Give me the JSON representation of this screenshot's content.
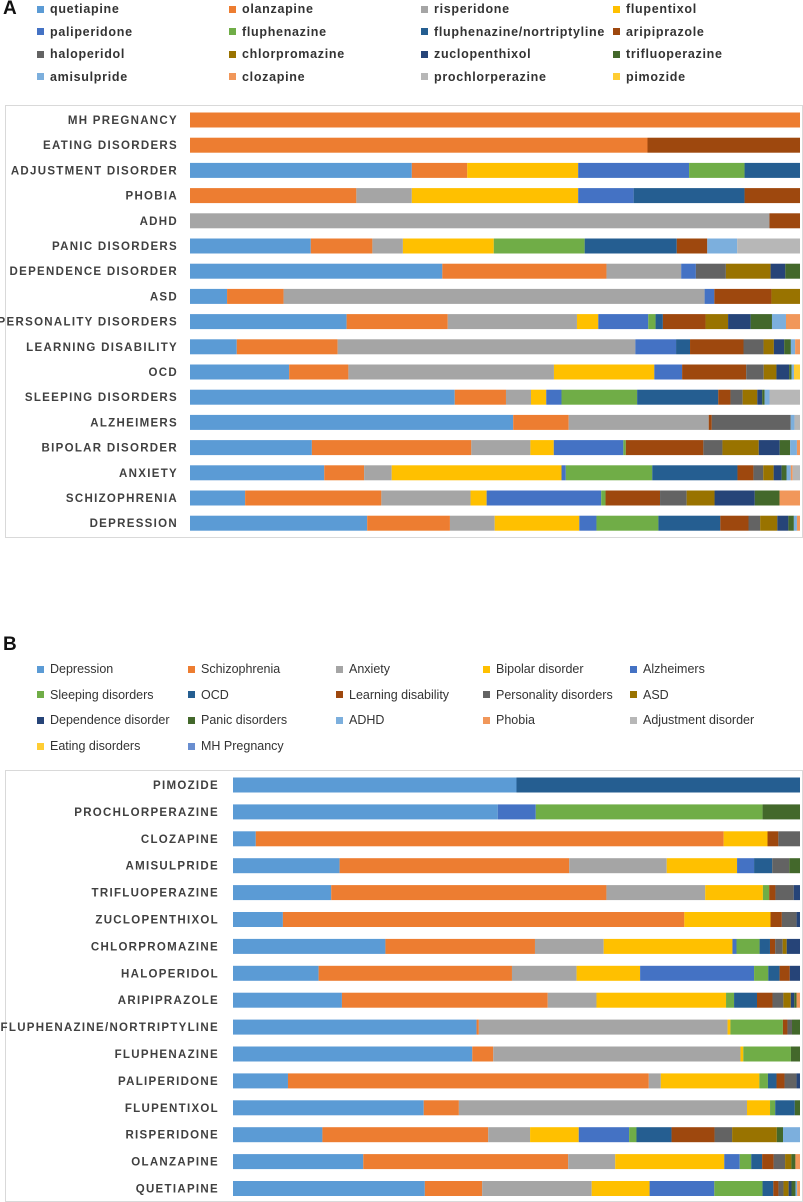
{
  "panels": [
    {
      "id": "A",
      "letter": "A",
      "chart_data": {
        "type": "bar",
        "orientation": "horizontal",
        "stacked": "percent",
        "title": "",
        "xlabel": "",
        "ylabel": "",
        "xlim": [
          0,
          100
        ],
        "grid": false,
        "legend_position": "top",
        "categories": [
          "MH PREGNANCY",
          "EATING DISORDERS",
          "ADJUSTMENT DISORDER",
          "PHOBIA",
          "ADHD",
          "PANIC DISORDERS",
          "DEPENDENCE DISORDER",
          "ASD",
          "PERSONALITY DISORDERS",
          "LEARNING DISABILITY",
          "OCD",
          "SLEEPING DISORDERS",
          "ALZHEIMERS",
          "BIPOLAR DISORDER",
          "ANXIETY",
          "SCHIZOPHRENIA",
          "DEPRESSION"
        ],
        "series": [
          {
            "name": "quetiapine",
            "color": "#5b9bd5",
            "values": [
              0,
              0,
              36.4,
              0,
              0,
              19.8,
              41.2,
              6.1,
              25.7,
              7.7,
              16.4,
              43.4,
              52.4,
              19.8,
              21.9,
              8.9,
              28.9
            ]
          },
          {
            "name": "olanzapine",
            "color": "#ed7d31",
            "values": [
              100,
              75,
              9.1,
              27.3,
              0,
              10.1,
              26.8,
              9.3,
              16.6,
              16.6,
              9.8,
              8.4,
              9.0,
              25.9,
              6.5,
              22.0,
              13.5
            ]
          },
          {
            "name": "risperidone",
            "color": "#a5a5a5",
            "values": [
              0,
              0,
              0,
              9.1,
              95,
              5.0,
              12.2,
              69.3,
              21.2,
              49.0,
              34.0,
              4.1,
              22.7,
              9.6,
              4.5,
              14.4,
              7.3
            ]
          },
          {
            "name": "flupentixol",
            "color": "#ffc000",
            "values": [
              0,
              0,
              18.2,
              27.3,
              0,
              14.9,
              0,
              0,
              3.5,
              0,
              16.6,
              2.5,
              0,
              3.8,
              27.7,
              2.6,
              13.8
            ]
          },
          {
            "name": "paliperidone",
            "color": "#4472c4",
            "values": [
              0,
              0,
              18.2,
              9.1,
              0,
              0,
              2.4,
              1.6,
              8.2,
              6.7,
              4.6,
              2.5,
              0,
              11.3,
              0.7,
              18.5,
              2.8
            ]
          },
          {
            "name": "fluphenazine",
            "color": "#70ad47",
            "values": [
              0,
              0,
              9.1,
              0,
              0,
              14.9,
              0,
              0,
              1.2,
              0,
              0,
              12.4,
              0,
              0.4,
              14.1,
              0.7,
              10.1
            ]
          },
          {
            "name": "fluphenazine/nortriptyline",
            "color": "#255e91",
            "values": [
              0,
              0,
              9.1,
              18.2,
              0,
              15.1,
              0,
              0,
              1.2,
              2.3,
              0,
              13.3,
              0,
              0,
              13.9,
              0,
              10.1
            ]
          },
          {
            "name": "aripiprazole",
            "color": "#9e480e",
            "values": [
              0,
              25,
              0,
              9.1,
              5,
              5.0,
              0,
              9.4,
              7.0,
              8.8,
              10.6,
              2.0,
              0.5,
              12.6,
              2.6,
              8.8,
              4.6
            ]
          },
          {
            "name": "haloperidol",
            "color": "#636363",
            "values": [
              0,
              0,
              0,
              0,
              0,
              0,
              4.9,
              0,
              0,
              3.3,
              2.9,
              2.0,
              12.8,
              3.1,
              1.6,
              4.3,
              1.9
            ]
          },
          {
            "name": "chlorpromazine",
            "color": "#997300",
            "values": [
              0,
              0,
              0,
              0,
              0,
              0,
              7.3,
              4.7,
              3.7,
              1.7,
              2.1,
              2.4,
              0,
              5.9,
              1.7,
              4.5,
              2.8
            ]
          },
          {
            "name": "zuclopenthixol",
            "color": "#264478",
            "values": [
              0,
              0,
              0,
              0,
              0,
              0,
              2.4,
              0,
              3.7,
              1.7,
              2.1,
              0.8,
              0,
              3.4,
              1.3,
              6.5,
              1.8
            ]
          },
          {
            "name": "trifluoperazine",
            "color": "#43682b",
            "values": [
              0,
              0,
              0,
              0,
              0,
              0,
              2.4,
              0,
              3.5,
              1.1,
              0.4,
              0.4,
              0,
              1.7,
              0.8,
              4.0,
              0.9
            ]
          },
          {
            "name": "amisulpride",
            "color": "#7cafdd",
            "values": [
              0,
              0,
              0,
              0,
              0,
              4.9,
              0,
              0,
              2.3,
              0.7,
              0.4,
              0.8,
              0.6,
              1.1,
              0.7,
              0,
              0.5
            ]
          },
          {
            "name": "clozapine",
            "color": "#f1975a",
            "values": [
              0,
              0,
              0,
              0,
              0,
              0,
              0,
              0,
              2.3,
              0.8,
              0,
              0,
              0,
              0.5,
              0.3,
              3.3,
              0.5
            ]
          },
          {
            "name": "prochlorperazine",
            "color": "#b7b7b7",
            "values": [
              0,
              0,
              0,
              0,
              0,
              10.3,
              0,
              0,
              0,
              0,
              0,
              5.0,
              0.9,
              0,
              1.2,
              0,
              0
            ]
          },
          {
            "name": "pimozide",
            "color": "#ffcd33",
            "values": [
              0,
              0,
              0,
              0,
              0,
              0,
              0,
              0,
              0,
              0,
              1.0,
              0,
              0,
              0,
              0,
              0,
              0
            ]
          }
        ]
      }
    },
    {
      "id": "B",
      "letter": "B",
      "chart_data": {
        "type": "bar",
        "orientation": "horizontal",
        "stacked": "percent",
        "title": "",
        "xlabel": "",
        "ylabel": "",
        "xlim": [
          0,
          100
        ],
        "grid": false,
        "legend_position": "top",
        "categories": [
          "PIMOZIDE",
          "PROCHLORPERAZINE",
          "CLOZAPINE",
          "AMISULPRIDE",
          "TRIFLUOPERAZINE",
          "ZUCLOPENTHIXOL",
          "CHLORPROMAZINE",
          "HALOPERIDOL",
          "ARIPIPRAZOLE",
          "FLUPHENAZINE/NORTRIPTYLINE",
          "FLUPHENAZINE",
          "PALIPERIDONE",
          "FLUPENTIXOL",
          "RISPERIDONE",
          "OLANZAPINE",
          "QUETIAPINE"
        ],
        "series": [
          {
            "name": "Depression",
            "color": "#5b9bd5",
            "values": [
              50,
              46.7,
              4,
              18.8,
              17.2,
              8.8,
              26.4,
              15.1,
              19.0,
              42.7,
              42.2,
              9.6,
              33.1,
              15.8,
              22.7,
              33.8
            ]
          },
          {
            "name": "Schizophrenia",
            "color": "#ed7d31",
            "values": [
              0,
              0,
              82.1,
              40.5,
              48.2,
              70.8,
              25.9,
              34.1,
              35.9,
              0.4,
              3.7,
              63.0,
              6.1,
              29.3,
              35.7,
              10.1
            ]
          },
          {
            "name": "Anxiety",
            "color": "#a5a5a5",
            "values": [
              0,
              0,
              0,
              17.2,
              17.3,
              0,
              11.9,
              11.4,
              8.5,
              43.6,
              43.6,
              2.1,
              50.0,
              7.4,
              8.2,
              19.3
            ]
          },
          {
            "name": "Bipolar disorder",
            "color": "#ffc000",
            "values": [
              0,
              0,
              7.7,
              12.4,
              10.1,
              15.2,
              22.3,
              11.2,
              22.6,
              0.5,
              0.5,
              17.2,
              4.0,
              8.6,
              19.0,
              10.2
            ]
          },
          {
            "name": "Alzheimers",
            "color": "#4472c4",
            "values": [
              0,
              6.7,
              0,
              3.0,
              0,
              0,
              0.7,
              20.1,
              0,
              0,
              0,
              0,
              0,
              8.9,
              2.7,
              11.4
            ]
          },
          {
            "name": "Sleeping disorders",
            "color": "#70ad47",
            "values": [
              0,
              40.0,
              0,
              0,
              1.1,
              0,
              4.0,
              2.5,
              1.4,
              9.2,
              8.4,
              1.5,
              0.9,
              1.3,
              2.0,
              8.5
            ]
          },
          {
            "name": "OCD",
            "color": "#255e91",
            "values": [
              50,
              0,
              0,
              3.2,
              0,
              0,
              1.8,
              2.0,
              4.0,
              0,
              0,
              1.5,
              3.4,
              6.2,
              1.9,
              1.9
            ]
          },
          {
            "name": "Learning disability",
            "color": "#9e480e",
            "values": [
              0,
              0,
              1.9,
              0,
              1.1,
              2.0,
              0.9,
              1.8,
              2.7,
              0.8,
              0,
              1.4,
              0,
              7.6,
              2.0,
              0.9
            ]
          },
          {
            "name": "Personality disorders",
            "color": "#636363",
            "values": [
              0,
              0,
              3.8,
              3.0,
              3.2,
              2.6,
              1.3,
              0,
              1.9,
              0.8,
              0,
              2.1,
              0,
              3.1,
              2.0,
              0.9
            ]
          },
          {
            "name": "ASD",
            "color": "#997300",
            "values": [
              0,
              0,
              0,
              0,
              0,
              0,
              0.7,
              0,
              1.3,
              0,
              0,
              0,
              0,
              7.9,
              1.1,
              0.9
            ]
          },
          {
            "name": "Dependence disorder",
            "color": "#264478",
            "values": [
              0,
              0,
              0,
              0,
              1.1,
              0.6,
              2.3,
              1.8,
              0.6,
              0,
              0,
              0.6,
              0,
              0,
              0,
              0.5
            ]
          },
          {
            "name": "Panic disorders",
            "color": "#43682b",
            "values": [
              0,
              6.6,
              0,
              1.9,
              0,
              0,
              0,
              0,
              0.4,
              1.4,
              1.6,
              0,
              0.9,
              1.1,
              0.7,
              0.7
            ]
          },
          {
            "name": "ADHD",
            "color": "#7cafdd",
            "values": [
              0,
              0,
              0,
              0,
              0,
              0,
              0,
              0,
              0,
              0,
              0,
              0,
              0,
              3.0,
              0,
              0.3
            ]
          },
          {
            "name": "Phobia",
            "color": "#f1975a",
            "values": [
              0,
              0,
              0,
              0,
              0,
              0,
              0,
              0,
              0.6,
              0,
              0,
              0,
              0,
              0,
              0.8,
              0.5
            ]
          },
          {
            "name": "Adjustment disorder",
            "color": "#b7b7b7",
            "values": [
              0,
              0,
              0,
              0,
              0,
              0,
              0,
              0,
              0,
              0,
              0,
              0,
              0,
              0,
              0,
              0
            ]
          },
          {
            "name": "Eating disorders",
            "color": "#ffcd33",
            "values": [
              0,
              0,
              0,
              0,
              0,
              0,
              0,
              0,
              0,
              0,
              0,
              0,
              0,
              0,
              0,
              0
            ]
          },
          {
            "name": "MH Pregnancy",
            "color": "#698ed0",
            "values": [
              0,
              0,
              0,
              0,
              0,
              0,
              0,
              0,
              0,
              0,
              0,
              0,
              0,
              0,
              0,
              0
            ]
          }
        ]
      }
    }
  ]
}
